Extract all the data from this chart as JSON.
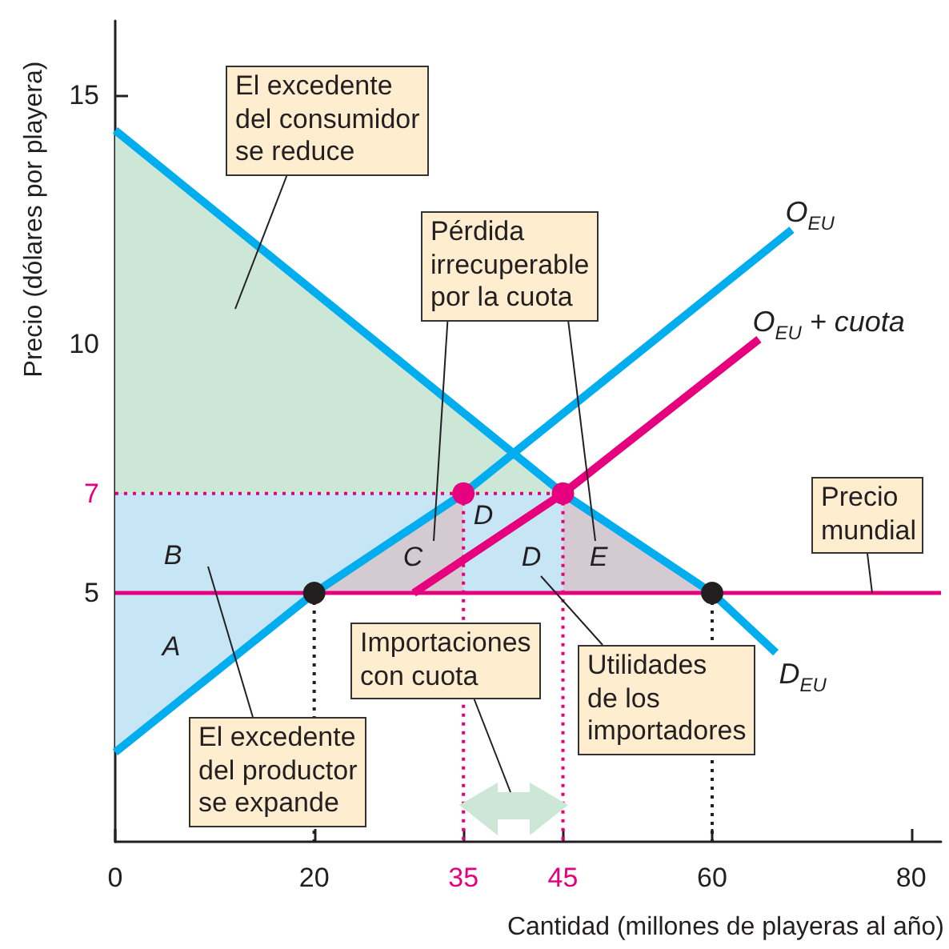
{
  "chart_data": {
    "type": "line",
    "xlabel": "Cantidad (millones de playeras al año)",
    "ylabel": "Precio (dólares por playera)",
    "xlim": [
      0,
      83
    ],
    "ylim": [
      0,
      16.5
    ],
    "xticks": [
      0,
      20,
      35,
      45,
      60,
      80
    ],
    "yticks": [
      5,
      7,
      10,
      15
    ],
    "grid": false,
    "marker": "none",
    "line_style": "solid",
    "series": [
      {
        "type": "area",
        "color": "#cde7d6",
        "x": [
          0,
          45
        ],
        "values": [
          null,
          null
        ],
        "lower": [
          7,
          7
        ],
        "upper": [
          14.3,
          7
        ]
      },
      {
        "type": "area",
        "color": "#c6e6f6",
        "x": [
          0,
          20,
          35,
          35,
          45
        ],
        "values": [
          null,
          null,
          null,
          null,
          null
        ],
        "lower": [
          1.8,
          5,
          7,
          5,
          5
        ],
        "upper": [
          7,
          7,
          7,
          7,
          7
        ]
      },
      {
        "type": "area",
        "color": "#d3cad2",
        "x": [
          20,
          35
        ],
        "values": [
          null,
          null
        ],
        "lower": [
          5,
          5
        ],
        "upper": [
          5,
          7
        ]
      },
      {
        "type": "area",
        "color": "#d3cad2",
        "x": [
          45,
          60
        ],
        "values": [
          null,
          null
        ],
        "lower": [
          5,
          5
        ],
        "upper": [
          7,
          5
        ]
      },
      {
        "color": "#e6007e",
        "x": [
          0,
          45
        ],
        "values": [
          7,
          7
        ],
        "line_style": "dotted"
      },
      {
        "color": "#e6007e",
        "x": [
          35,
          35
        ],
        "values": [
          7,
          0
        ],
        "line_style": "dotted"
      },
      {
        "color": "#e6007e",
        "x": [
          45,
          45
        ],
        "values": [
          7,
          0
        ],
        "line_style": "dotted"
      },
      {
        "color": "#231f20",
        "x": [
          20,
          20
        ],
        "values": [
          5,
          0
        ],
        "line_style": "dotted"
      },
      {
        "color": "#231f20",
        "x": [
          60,
          60
        ],
        "values": [
          5,
          0
        ],
        "line_style": "dotted"
      },
      {
        "name": "O$_{EU}$",
        "color": "#00aeef",
        "x": [
          0,
          20,
          35,
          68
        ],
        "values": [
          1.8,
          5,
          7,
          12.3
        ]
      },
      {
        "name": "O$_{EU}$ + cuota",
        "color": "#e6007e",
        "x": [
          30,
          45,
          64.7
        ],
        "values": [
          5,
          7,
          10.1
        ]
      },
      {
        "name": "D$_{EU}$",
        "color": "#00aeef",
        "x": [
          0,
          45,
          60,
          66.4
        ],
        "values": [
          14.3,
          7,
          5,
          3.8
        ]
      },
      {
        "type": "scatter",
        "marker": "circle",
        "x": [
          20,
          35,
          45,
          60
        ],
        "values": [
          5,
          7,
          7,
          5
        ],
        "colors": [
          "#231f20",
          "#e6007e",
          "#e6007e",
          "#231f20"
        ]
      }
    ],
    "ref_lines": [
      {
        "axis": "y",
        "value": 5,
        "label": "Precio mundial",
        "color": "#e6007e"
      }
    ],
    "annotations": [
      "El excedente\ndel consumidor\nse reduce",
      "Pérdida\nirrecuperable\npor la cuota",
      "Importaciones\ncon cuota",
      "Utilidades\nde los\nimportadores",
      "El excedente\ndel productor\nse expande",
      "A",
      "B",
      "C",
      "D",
      "D",
      "E"
    ]
  }
}
